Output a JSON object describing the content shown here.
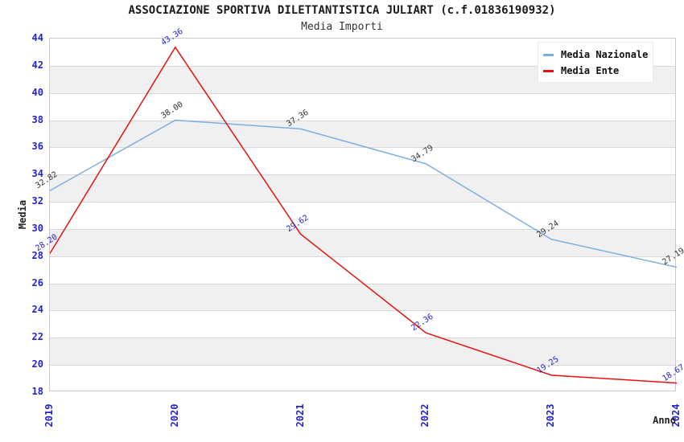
{
  "chart_data": {
    "type": "line",
    "title": "ASSOCIAZIONE SPORTIVA DILETTANTISTICA JULIART (c.f.01836190932)",
    "subtitle": "Media Importi",
    "xlabel": "Anno",
    "ylabel": "Media",
    "categories": [
      "2019",
      "2020",
      "2021",
      "2022",
      "2023",
      "2024"
    ],
    "series": [
      {
        "name": "Media Nazionale",
        "color": "#7cb0e2",
        "label_color": "#333333",
        "values": [
          32.82,
          38.0,
          37.36,
          34.79,
          29.24,
          27.19
        ],
        "labels": [
          "32.82",
          "38.00",
          "37.36",
          "34.79",
          "29.24",
          "27.19"
        ]
      },
      {
        "name": "Media Ente",
        "color": "#e61212",
        "label_color": "#2424cc",
        "values": [
          28.2,
          43.36,
          29.62,
          22.36,
          19.25,
          18.67
        ],
        "labels": [
          "28.20",
          "43.36",
          "29.62",
          "22.36",
          "19.25",
          "18.67"
        ]
      }
    ],
    "ylim": [
      18,
      44
    ],
    "ytick_step": 2,
    "grid": "horizontal",
    "legend_position": "top-right",
    "colors": {
      "tick_text": "#2424cc",
      "band_fill": "#f0f0f0",
      "gridline": "#d8d8d8",
      "plot_border": "#c9c9c9"
    }
  }
}
